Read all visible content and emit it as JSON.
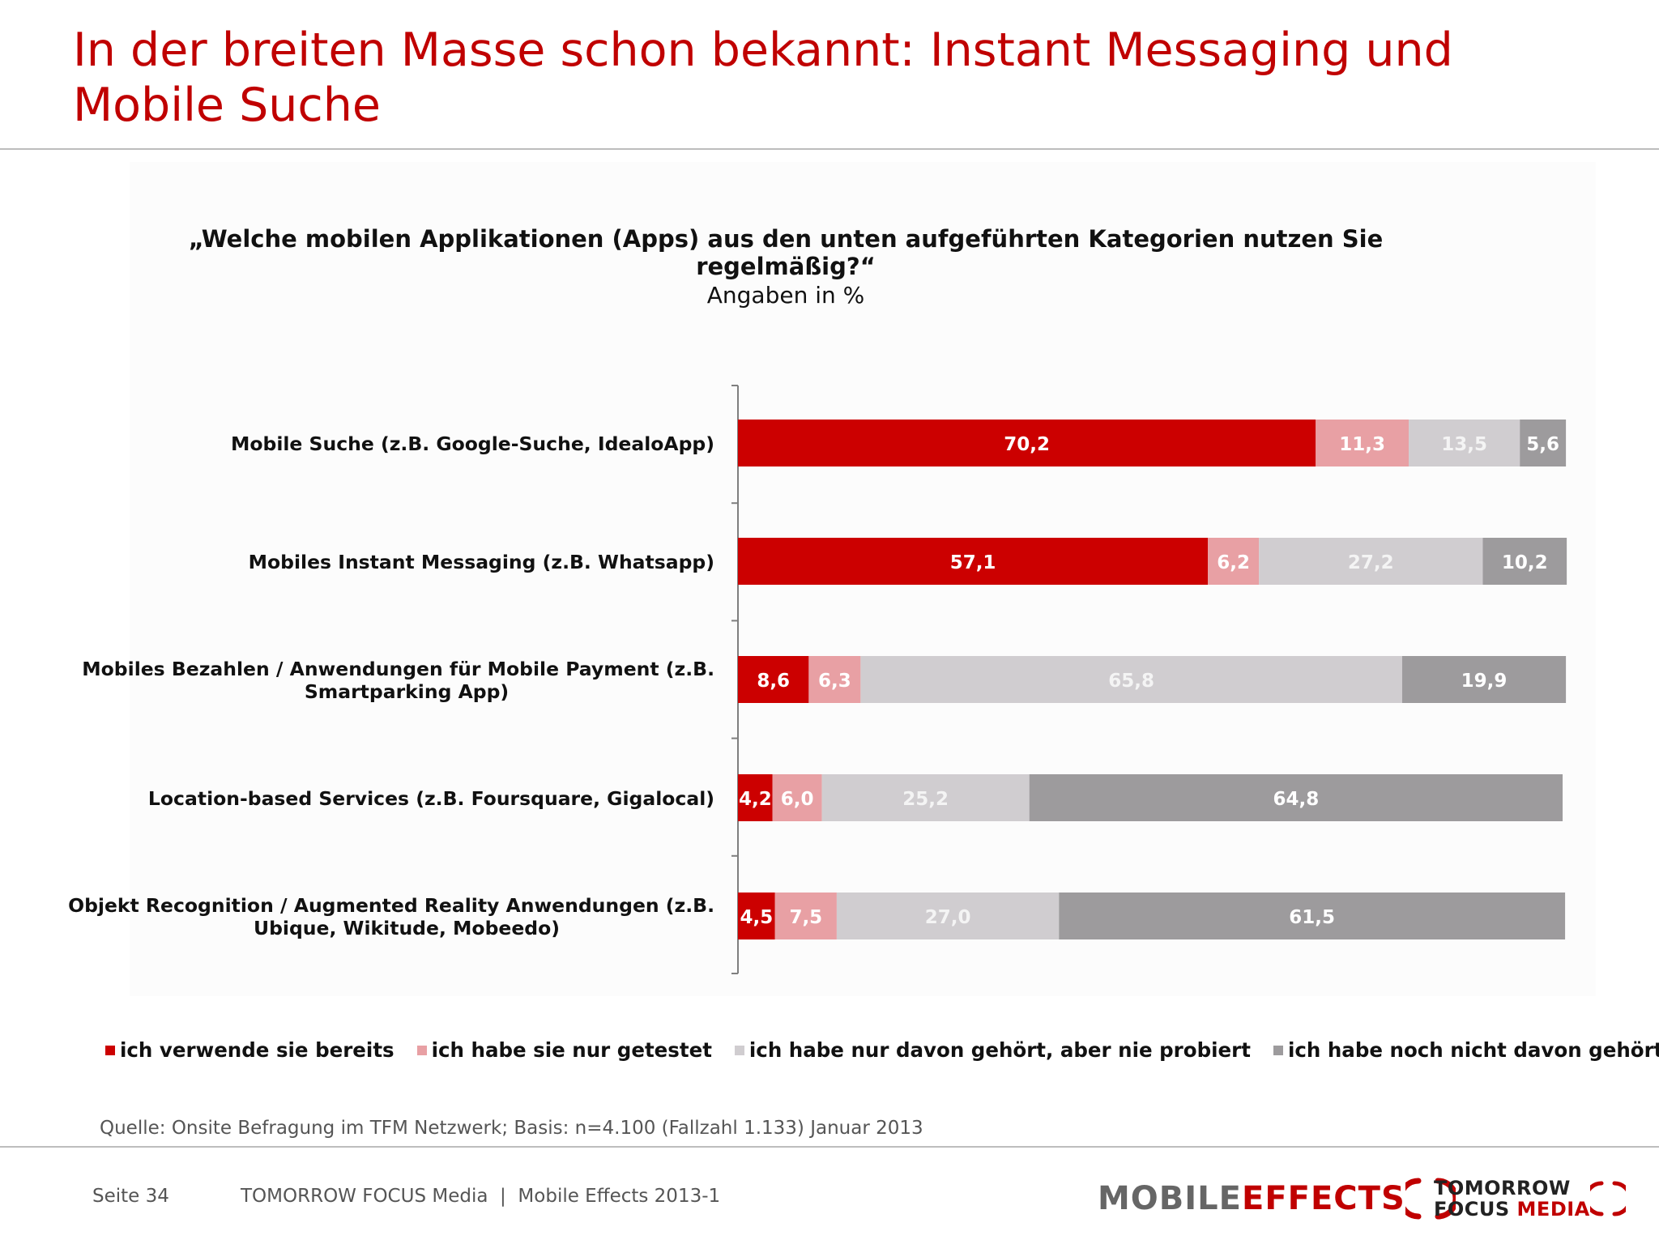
{
  "slide": {
    "title": "In der breiten Masse schon bekannt: Instant Messaging und Mobile Suche",
    "question": "„Welche mobilen Applikationen (Apps) aus den unten aufgeführten Kategorien nutzen Sie regelmäßig?“",
    "subtitle": "Angaben in %",
    "source": "Quelle: Onsite Befragung im TFM Netzwerk; Basis: n=4.100 (Fallzahl 1.133) Januar 2013",
    "footer_page": "Seite 34",
    "footer_text": "TOMORROW FOCUS Media  |  Mobile Effects 2013-1",
    "logo_mobile_word1": "MOBILE",
    "logo_mobile_word2": "EFFECTS",
    "logo_tfm_line1": "TOMORROW",
    "logo_tfm_line2a": "FOCUS",
    "logo_tfm_line2b": "MEDIA"
  },
  "colors": {
    "title": "#c00000",
    "series": [
      "#cc0000",
      "#e8a0a4",
      "#d0cdd0",
      "#9d9b9d"
    ]
  },
  "chart_data": {
    "type": "bar",
    "orientation": "horizontal",
    "stacked": true,
    "categories": [
      "Mobile Suche (z.B. Google-Suche, IdealoApp)",
      "Mobiles Instant Messaging (z.B. Whatsapp)",
      "Mobiles Bezahlen / Anwendungen für Mobile Payment (z.B. Smartparking App)",
      "Location-based Services (z.B. Foursquare, Gigalocal)",
      "Objekt Recognition / Augmented Reality Anwendungen (z.B. Ubique, Wikitude, Mobeedo)"
    ],
    "category_lines": [
      [
        "Mobile Suche (z.B. Google-Suche, IdealoApp)"
      ],
      [
        "Mobiles Instant Messaging (z.B. Whatsapp)"
      ],
      [
        "Mobiles Bezahlen / Anwendungen für Mobile Payment (z.B.",
        "Smartparking App)"
      ],
      [
        "Location-based Services (z.B. Foursquare, Gigalocal)"
      ],
      [
        "Objekt Recognition / Augmented Reality Anwendungen (z.B.",
        "Ubique, Wikitude, Mobeedo)"
      ]
    ],
    "series": [
      {
        "name": "ich verwende sie bereits",
        "values": [
          70.2,
          57.1,
          8.6,
          4.2,
          4.5
        ],
        "labels": [
          "70,2",
          "57,1",
          "8,6",
          "4,2",
          "4,5"
        ]
      },
      {
        "name": "ich habe sie nur getestet",
        "values": [
          11.3,
          6.2,
          6.3,
          6.0,
          7.5
        ],
        "labels": [
          "11,3",
          "6,2",
          "6,3",
          "6,0",
          "7,5"
        ]
      },
      {
        "name": "ich habe nur davon gehört, aber nie probiert",
        "values": [
          13.5,
          27.2,
          65.8,
          25.2,
          27.0
        ],
        "labels": [
          "13,5",
          "27,2",
          "65,8",
          "25,2",
          "27,0"
        ]
      },
      {
        "name": "ich habe noch nicht davon gehört",
        "values": [
          5.6,
          10.2,
          19.9,
          64.8,
          61.5
        ],
        "labels": [
          "5,6",
          "10,2",
          "19,9",
          "64,8",
          "61,5"
        ]
      }
    ],
    "xlim": [
      0,
      100
    ],
    "legend_position": "bottom",
    "grid": false,
    "data_labels": true
  }
}
